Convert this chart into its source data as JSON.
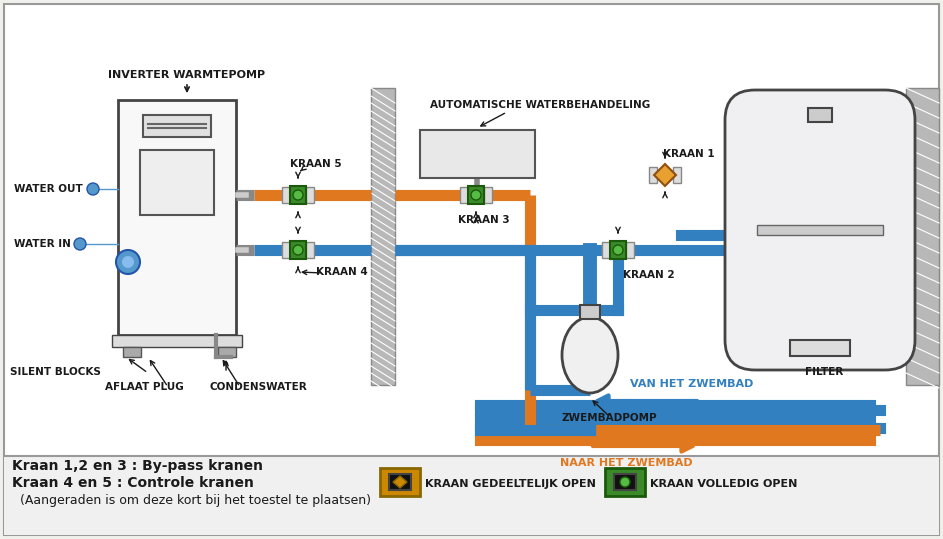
{
  "bg_color": "#f0f0ed",
  "main_bg": "#ffffff",
  "orange": "#e07820",
  "blue": "#3380c0",
  "dark": "#1a1a1a",
  "green": "#3a8a2a",
  "light_gray": "#f5f5f5",
  "mid_gray": "#cccccc",
  "wall_fill": "#b0b0b0",
  "text_labels": {
    "inverter_warmtepomp": "INVERTER WARMTEPOMP",
    "water_out": "WATER OUT",
    "water_in": "WATER IN",
    "silent_blocks": "SILENT BLOCKS",
    "aflaat_plug": "AFLAAT PLUG",
    "condenswater": "CONDENSWATER",
    "kraan4": "KRAAN 4",
    "kraan5": "KRAAN 5",
    "automatische": "AUTOMATISCHE WATERBEHANDELING",
    "kraan3": "KRAAN 3",
    "kraan2": "KRAAN 2",
    "kraan1": "KRAAN 1",
    "zwembadpomp": "ZWEMBADPOMP",
    "filter": "FILTER",
    "van_het": "VAN HET ZWEMBAD",
    "naar_het": "NAAR HET ZWEMBAD",
    "legend1": "Kraan 1,2 en 3 : By-pass kranen",
    "legend2": "Kraan 4 en 5 : Controle kranen",
    "legend3": "  (Aangeraden is om deze kort bij het toestel te plaatsen)",
    "leg_partial": "KRAAN GEDEELTELIJK OPEN",
    "leg_full": "KRAAN VOLLEDIG OPEN"
  },
  "pipe_lw": 8,
  "pipe_lw_thin": 6
}
